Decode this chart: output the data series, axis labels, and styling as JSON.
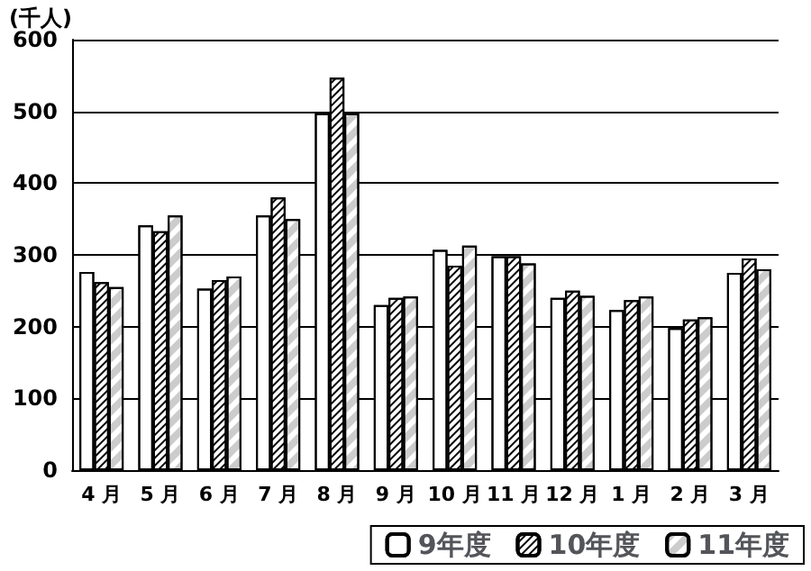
{
  "chart_data": {
    "type": "bar",
    "ylabel": "(千人)",
    "categories": [
      "4 月",
      "5 月",
      "6 月",
      "7 月",
      "8 月",
      "9 月",
      "10 月",
      "11 月",
      "12 月",
      "1 月",
      "2 月",
      "3 月"
    ],
    "series": [
      {
        "name": "9年度",
        "color": "#ffffff",
        "values": [
          276,
          341,
          253,
          355,
          497,
          230,
          307,
          298,
          240,
          223,
          198,
          275
        ]
      },
      {
        "name": "10年度",
        "color": "#ffffff",
        "values": [
          262,
          333,
          265,
          380,
          547,
          240,
          285,
          298,
          250,
          237,
          210,
          295
        ]
      },
      {
        "name": "11年度",
        "color": "#ffffff",
        "values": [
          255,
          355,
          270,
          350,
          497,
          242,
          313,
          288,
          243,
          242,
          213,
          280
        ]
      }
    ],
    "ylim": [
      0,
      600
    ],
    "yticks": [
      0,
      100,
      200,
      300,
      400,
      500,
      600
    ],
    "grid": "y",
    "legend": "bottom right"
  }
}
